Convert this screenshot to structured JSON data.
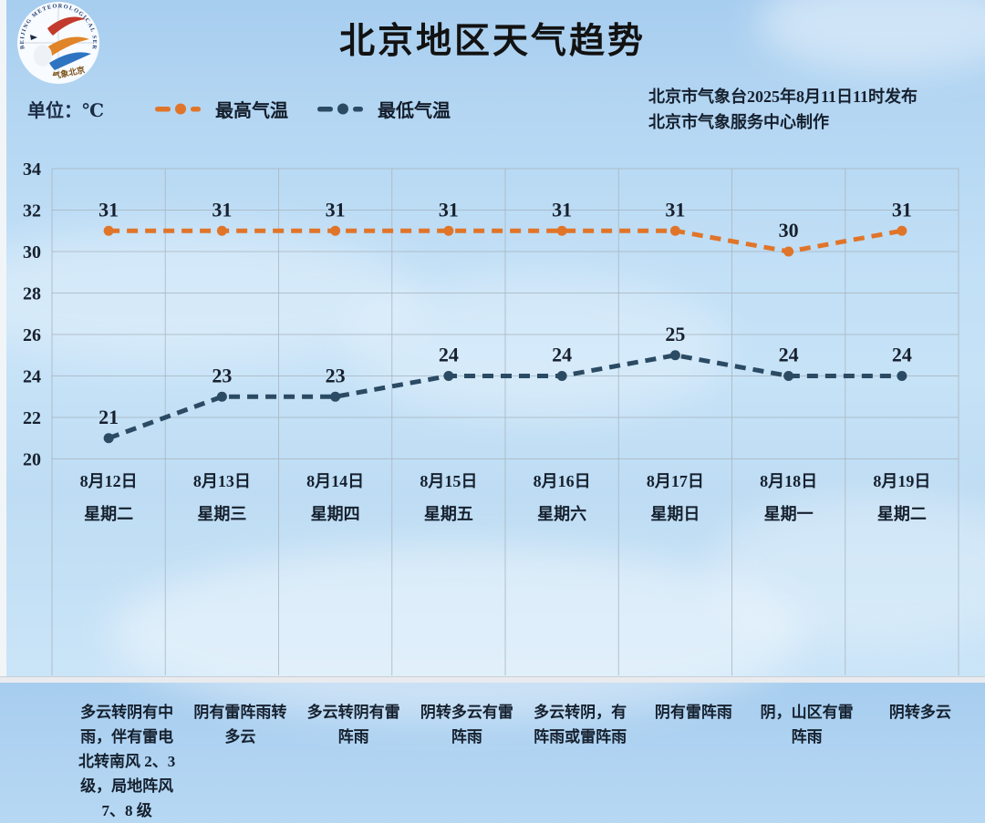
{
  "page": {
    "title": "北京地区天气趋势",
    "unit_label": "单位：℃",
    "issue_line1": "北京市气象台2025年8月11日11时发布",
    "issue_line2": "北京市气象服务中心制作"
  },
  "logo": {
    "arc_text": "BEIJING METEOROLOGICAL SERVICE",
    "bottom_text": "气象北京"
  },
  "colors": {
    "max_line": "#E0752A",
    "min_line": "#2B4A63",
    "grid": "#A9B6C0",
    "value_text": "#17202E",
    "axis_text": "#17202E"
  },
  "chart_data": {
    "type": "line",
    "title": "北京地区天气趋势",
    "unit": "℃",
    "categories": [
      "8月12日",
      "8月13日",
      "8月14日",
      "8月15日",
      "8月16日",
      "8月17日",
      "8月18日",
      "8月19日"
    ],
    "weekdays": [
      "星期二",
      "星期三",
      "星期四",
      "星期五",
      "星期六",
      "星期日",
      "星期一",
      "星期二"
    ],
    "weather": [
      "多云转阴有中雨，伴有雷电北转南风 2、3 级，局地阵风 7、8 级",
      "阴有雷阵雨转多云",
      "多云转阴有雷阵雨",
      "阴转多云有雷阵雨",
      "多云转阴，有阵雨或雷阵雨",
      "阴有雷阵雨",
      "阴，山区有雷阵雨",
      "阴转多云"
    ],
    "series": [
      {
        "name": "最高气温",
        "color": "#E0752A",
        "values": [
          31,
          31,
          31,
          31,
          31,
          31,
          30,
          31
        ]
      },
      {
        "name": "最低气温",
        "color": "#2B4A63",
        "values": [
          21,
          23,
          23,
          24,
          24,
          25,
          24,
          24
        ]
      }
    ],
    "ylim": [
      20,
      34
    ],
    "yticks": [
      34,
      32,
      30,
      28,
      26,
      24,
      22,
      20
    ],
    "grid": true,
    "legend_position": "top-left"
  }
}
